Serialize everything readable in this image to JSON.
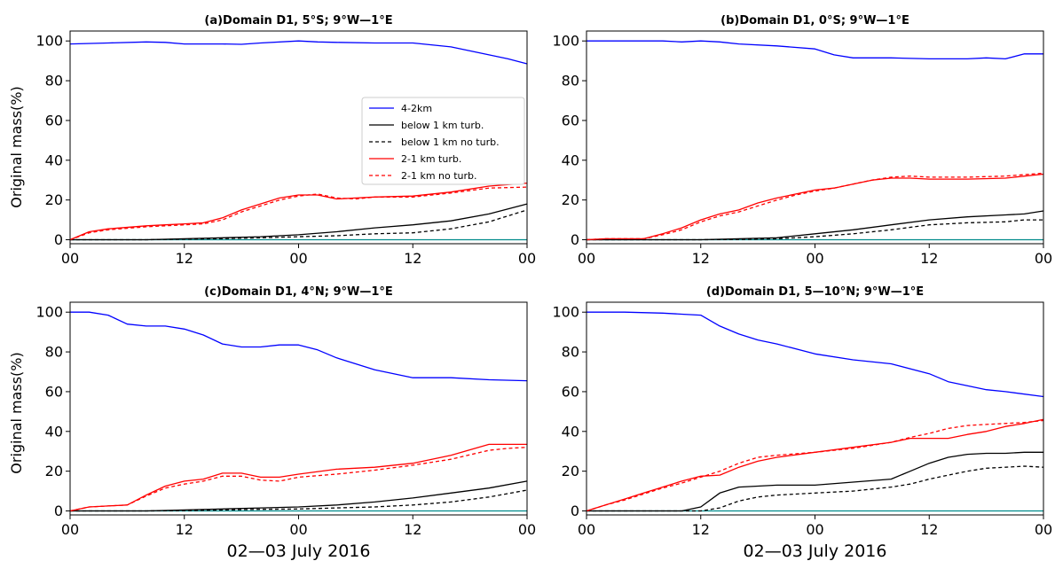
{
  "chart_data": {
    "type": "line",
    "ylabel": "Original mass(%)",
    "xlabel": "02—03 July 2016",
    "x_tick_labels": [
      "00",
      "12",
      "00",
      "12",
      "00"
    ],
    "x_hours": [
      0,
      12,
      24,
      36,
      48
    ],
    "xlim": [
      0,
      48
    ],
    "ylim": [
      -2,
      105
    ],
    "y_ticks": [
      0,
      20,
      40,
      60,
      80,
      100
    ],
    "legend": {
      "placement": "inside panel (a), right",
      "entries": [
        "4-2km",
        "below 1 km turb.",
        " below 1 km no turb.",
        "2-1 km turb.",
        "2-1 km no turb."
      ]
    },
    "styles": {
      "4-2km": {
        "color": "#0000ff",
        "dash": ""
      },
      "below 1 km turb.": {
        "color": "#000000",
        "dash": ""
      },
      " below 1 km no turb.": {
        "color": "#000000",
        "dash": "4,3"
      },
      "2-1 km turb.": {
        "color": "#ff0000",
        "dash": ""
      },
      "2-1 km no turb.": {
        "color": "#ff0000",
        "dash": "4,3"
      },
      "zero_line_color": "#008b8b"
    },
    "panels": [
      {
        "title": "(a)Domain D1, 5°S; 9°W—1°E",
        "series": [
          {
            "name": "4-2km",
            "x": [
              0,
              4,
              8,
              10,
              12,
              16,
              18,
              20,
              24,
              26,
              28,
              32,
              36,
              40,
              44,
              46,
              48
            ],
            "y": [
              98.5,
              99,
              99.5,
              99.3,
              98.5,
              98.5,
              98.3,
              99,
              100,
              99.5,
              99.3,
              99,
              99,
              97,
              93,
              91,
              88.5
            ]
          },
          {
            "name": "below 1 km turb.",
            "x": [
              0,
              8,
              12,
              16,
              20,
              24,
              28,
              32,
              36,
              40,
              44,
              48
            ],
            "y": [
              0,
              0,
              0.5,
              1,
              1.5,
              2.5,
              4,
              6,
              7.5,
              9.5,
              13,
              18
            ]
          },
          {
            "name": " below 1 km no turb.",
            "x": [
              0,
              8,
              12,
              16,
              20,
              24,
              28,
              32,
              36,
              40,
              44,
              48
            ],
            "y": [
              0,
              0,
              0.3,
              0.6,
              1,
              1.5,
              2,
              3,
              3.5,
              5.5,
              9,
              15
            ]
          },
          {
            "name": "2-1 km turb.",
            "x": [
              0,
              2,
              4,
              8,
              10,
              12,
              14,
              16,
              18,
              20,
              22,
              24,
              26,
              28,
              30,
              32,
              36,
              40,
              44,
              48
            ],
            "y": [
              0,
              4,
              5.5,
              7,
              7.5,
              8,
              8.5,
              11,
              15,
              18,
              21,
              22.5,
              22.5,
              20.5,
              21,
              21.5,
              22,
              24,
              27,
              28.5
            ]
          },
          {
            "name": "2-1 km no turb.",
            "x": [
              0,
              2,
              4,
              8,
              10,
              12,
              14,
              16,
              18,
              20,
              22,
              24,
              26,
              28,
              30,
              32,
              36,
              40,
              44,
              48
            ],
            "y": [
              0,
              3.5,
              5,
              6.5,
              7,
              7.5,
              8,
              10,
              14,
              17,
              20,
              22,
              23,
              21,
              20.5,
              21.5,
              21.5,
              23.5,
              26,
              26.5
            ]
          }
        ]
      },
      {
        "title": "(b)Domain D1, 0°S; 9°W—1°E",
        "series": [
          {
            "name": "4-2km",
            "x": [
              0,
              4,
              8,
              10,
              12,
              14,
              16,
              20,
              24,
              26,
              28,
              32,
              36,
              40,
              42,
              44,
              46,
              48
            ],
            "y": [
              100,
              100,
              100,
              99.5,
              100,
              99.5,
              98.5,
              97.5,
              96,
              93,
              91.5,
              91.5,
              91,
              91,
              91.5,
              91,
              93.5,
              93.5
            ]
          },
          {
            "name": "below 1 km turb.",
            "x": [
              0,
              12,
              16,
              20,
              24,
              28,
              32,
              36,
              40,
              44,
              46,
              48
            ],
            "y": [
              0,
              0,
              0.5,
              1,
              3,
              5,
              7.5,
              10,
              11.5,
              12.5,
              13,
              14.5
            ]
          },
          {
            "name": " below 1 km no turb.",
            "x": [
              0,
              12,
              16,
              20,
              24,
              28,
              32,
              36,
              40,
              44,
              46,
              48
            ],
            "y": [
              0,
              0,
              0.2,
              0.5,
              1.5,
              3,
              5,
              7.5,
              8.5,
              9,
              10,
              10
            ]
          },
          {
            "name": "2-1 km turb.",
            "x": [
              0,
              2,
              4,
              6,
              8,
              10,
              12,
              14,
              16,
              18,
              20,
              22,
              24,
              26,
              28,
              30,
              32,
              34,
              36,
              40,
              44,
              48
            ],
            "y": [
              0,
              0.5,
              0.5,
              0.5,
              3,
              6,
              10,
              13,
              15,
              18.5,
              21,
              23,
              25,
              26,
              28,
              30,
              31,
              31,
              30.5,
              30.5,
              31,
              33
            ]
          },
          {
            "name": "2-1 km no turb.",
            "x": [
              0,
              2,
              4,
              6,
              8,
              10,
              12,
              14,
              16,
              18,
              20,
              22,
              24,
              26,
              28,
              30,
              32,
              34,
              36,
              40,
              44,
              48
            ],
            "y": [
              0,
              0.5,
              0.5,
              0.5,
              2.5,
              5,
              9,
              12,
              14,
              17,
              20,
              22.5,
              24.5,
              26,
              28,
              30,
              31.5,
              32,
              31.5,
              31.5,
              32,
              33.5
            ]
          }
        ]
      },
      {
        "title": "(c)Domain D1, 4°N; 9°W—1°E",
        "series": [
          {
            "name": "4-2km",
            "x": [
              0,
              2,
              4,
              6,
              8,
              10,
              12,
              14,
              16,
              18,
              20,
              22,
              24,
              26,
              28,
              32,
              36,
              38,
              40,
              44,
              48
            ],
            "y": [
              100,
              100,
              98.5,
              94,
              93,
              93,
              91.5,
              88.5,
              84,
              82.5,
              82.5,
              83.5,
              83.5,
              81,
              77,
              71,
              67,
              67,
              67,
              66,
              65.5
            ]
          },
          {
            "name": "below 1 km turb.",
            "x": [
              0,
              8,
              12,
              16,
              20,
              24,
              28,
              32,
              36,
              40,
              44,
              48
            ],
            "y": [
              0,
              0,
              0.5,
              1,
              1.5,
              2,
              3,
              4.5,
              6.5,
              9,
              11.5,
              15
            ]
          },
          {
            "name": " below 1 km no turb.",
            "x": [
              0,
              8,
              12,
              16,
              20,
              24,
              28,
              32,
              36,
              40,
              44,
              48
            ],
            "y": [
              0,
              0,
              0.2,
              0.5,
              0.8,
              1,
              1.5,
              2,
              3,
              4.5,
              7,
              10.5
            ]
          },
          {
            "name": "2-1 km turb.",
            "x": [
              0,
              2,
              4,
              6,
              8,
              10,
              12,
              14,
              16,
              18,
              20,
              22,
              24,
              28,
              32,
              36,
              40,
              44,
              46,
              48
            ],
            "y": [
              0,
              2,
              2.5,
              3,
              8,
              12.5,
              15,
              16,
              19,
              19,
              17,
              17,
              18.5,
              21,
              22,
              24,
              28,
              33.5,
              33.5,
              33.5
            ]
          },
          {
            "name": "2-1 km no turb.",
            "x": [
              0,
              2,
              4,
              6,
              8,
              10,
              12,
              14,
              16,
              18,
              20,
              22,
              24,
              28,
              32,
              36,
              40,
              44,
              46,
              48
            ],
            "y": [
              0,
              2,
              2.5,
              3,
              7.5,
              11.5,
              13.5,
              15,
              17.5,
              17.5,
              15.5,
              15,
              17,
              18.5,
              20.5,
              23,
              26,
              30.5,
              31.5,
              32
            ]
          }
        ]
      },
      {
        "title": "(d)Domain D1, 5—10°N; 9°W—1°E",
        "series": [
          {
            "name": "4-2km",
            "x": [
              0,
              4,
              8,
              10,
              12,
              14,
              16,
              18,
              20,
              24,
              28,
              32,
              36,
              38,
              40,
              42,
              44,
              48
            ],
            "y": [
              100,
              100,
              99.5,
              99,
              98.5,
              93,
              89,
              86,
              84,
              79,
              76,
              74,
              69,
              65,
              63,
              61,
              60,
              57.5
            ]
          },
          {
            "name": "below 1 km turb.",
            "x": [
              0,
              10,
              12,
              14,
              16,
              18,
              20,
              24,
              28,
              32,
              34,
              36,
              38,
              40,
              42,
              44,
              46,
              48
            ],
            "y": [
              0,
              0,
              2,
              9,
              12,
              12.5,
              13,
              13,
              14.5,
              16,
              20,
              24,
              27,
              28.5,
              29,
              29,
              29.5,
              29.5
            ]
          },
          {
            "name": " below 1 km no turb.",
            "x": [
              0,
              12,
              14,
              16,
              18,
              20,
              24,
              28,
              32,
              34,
              36,
              38,
              40,
              42,
              44,
              46,
              48
            ],
            "y": [
              0,
              0,
              1.5,
              5,
              7,
              8,
              9,
              10,
              12,
              13.5,
              16,
              18,
              20,
              21.5,
              22,
              22.5,
              22
            ]
          },
          {
            "name": "2-1 km turb.",
            "x": [
              0,
              2,
              4,
              6,
              8,
              10,
              12,
              14,
              16,
              18,
              20,
              24,
              28,
              32,
              34,
              36,
              38,
              40,
              42,
              44,
              46,
              48
            ],
            "y": [
              0,
              3,
              6,
              9,
              12,
              15,
              17.5,
              18,
              22,
              25,
              27,
              29.5,
              32,
              34.5,
              36.5,
              36.5,
              36.5,
              38.5,
              40,
              42.5,
              44,
              46
            ]
          },
          {
            "name": "2-1 km no turb.",
            "x": [
              0,
              2,
              4,
              6,
              8,
              10,
              12,
              14,
              16,
              18,
              20,
              24,
              28,
              32,
              34,
              36,
              38,
              40,
              42,
              44,
              46,
              48
            ],
            "y": [
              0,
              3,
              5.5,
              8.5,
              11.5,
              14,
              17,
              20,
              24,
              27,
              28,
              29.5,
              31.5,
              34.5,
              37,
              39,
              41.5,
              43,
              43.5,
              44,
              44.5,
              45.5
            ]
          }
        ]
      }
    ]
  }
}
